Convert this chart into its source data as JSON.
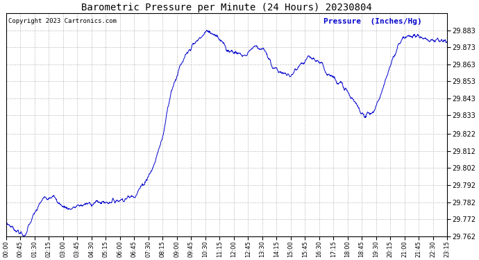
{
  "title": "Barometric Pressure per Minute (24 Hours) 20230804",
  "copyright_text": "Copyright 2023 Cartronics.com",
  "ylabel_text": "Pressure  (Inches/Hg)",
  "line_color": "#0000cc",
  "background_color": "#ffffff",
  "grid_color": "#b0b0b0",
  "title_color": "#000000",
  "copyright_color": "#000000",
  "ylabel_color": "#0000cc",
  "ylim_min": 29.762,
  "ylim_max": 29.893,
  "yticks": [
    29.762,
    29.772,
    29.782,
    29.792,
    29.802,
    29.812,
    29.822,
    29.833,
    29.843,
    29.853,
    29.863,
    29.873,
    29.883
  ],
  "xtick_labels": [
    "00:00",
    "00:45",
    "01:30",
    "02:15",
    "03:00",
    "03:45",
    "04:30",
    "05:15",
    "06:00",
    "06:45",
    "07:30",
    "08:15",
    "09:00",
    "09:45",
    "10:30",
    "11:15",
    "12:00",
    "12:45",
    "13:30",
    "14:15",
    "15:00",
    "15:45",
    "16:30",
    "17:15",
    "18:00",
    "18:45",
    "19:30",
    "20:15",
    "21:00",
    "21:45",
    "22:30",
    "23:15"
  ],
  "n_points": 1440,
  "figwidth": 6.9,
  "figheight": 3.75,
  "dpi": 100
}
